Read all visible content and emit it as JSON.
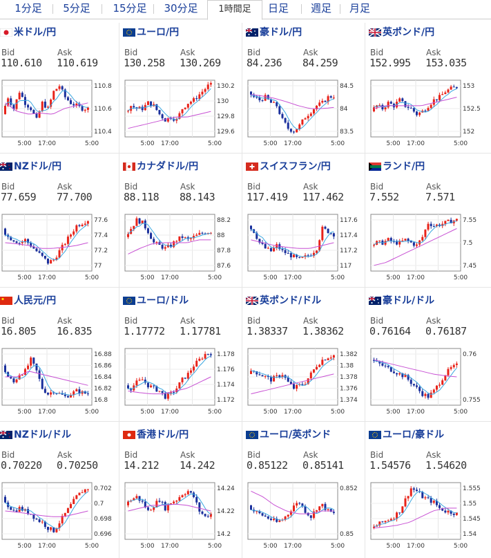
{
  "tabs": [
    {
      "label": "1分足",
      "active": false
    },
    {
      "label": "5分足",
      "active": false
    },
    {
      "label": "15分足",
      "active": false
    },
    {
      "label": "30分足",
      "active": false
    },
    {
      "label": "1時間足",
      "active": true
    },
    {
      "label": "日足",
      "active": false
    },
    {
      "label": "週足",
      "active": false
    },
    {
      "label": "月足",
      "active": false
    }
  ],
  "labels": {
    "bid": "Bid",
    "ask": "Ask"
  },
  "colors": {
    "up": "#e8231a",
    "down": "#1a2f9c",
    "ma_short": "#3aa7e0",
    "ma_long": "#c74fd3",
    "title": "#1a3f9a"
  },
  "panels": [
    {
      "name": "米ドル/円",
      "flag": "jp",
      "bid": "110.610",
      "ask": "110.619",
      "x_ticks": [
        "5:00",
        "17:00",
        "5:00"
      ],
      "y_ticks": [
        "110.8",
        "110.6",
        "110.4"
      ],
      "shape": [
        0.4,
        0.7,
        0.5,
        0.8,
        0.6,
        0.5,
        0.3,
        0.6,
        0.5,
        0.8,
        0.9,
        0.7,
        0.6,
        0.55,
        0.5,
        0.5
      ],
      "ma_long": [
        0.6,
        0.45,
        0.4,
        0.42,
        0.4,
        0.5,
        0.55,
        0.6
      ]
    },
    {
      "name": "ユーロ/円",
      "flag": "eu",
      "bid": "130.258",
      "ask": "130.269",
      "x_ticks": [
        "5:00",
        "17:00",
        "5:00"
      ],
      "y_ticks": [
        "130.2",
        "130",
        "129.8",
        "129.6"
      ],
      "shape": [
        0.45,
        0.55,
        0.5,
        0.5,
        0.6,
        0.55,
        0.4,
        0.3,
        0.35,
        0.3,
        0.5,
        0.6,
        0.65,
        0.75,
        0.85,
        0.95
      ],
      "ma_long": [
        0.15,
        0.2,
        0.25,
        0.3,
        0.35,
        0.35,
        0.4,
        0.45
      ]
    },
    {
      "name": "豪ドル/円",
      "flag": "au",
      "bid": "84.236",
      "ask": "84.259",
      "x_ticks": [
        "5:00",
        "17:00",
        "5:00"
      ],
      "y_ticks": [
        "84.5",
        "84",
        "83.5"
      ],
      "shape": [
        0.8,
        0.7,
        0.65,
        0.7,
        0.6,
        0.55,
        0.3,
        0.15,
        0.1,
        0.2,
        0.35,
        0.45,
        0.55,
        0.6,
        0.7,
        0.72
      ],
      "ma_long": [
        0.75,
        0.72,
        0.68,
        0.62,
        0.55,
        0.5,
        0.5,
        0.52
      ]
    },
    {
      "name": "英ポンド/円",
      "flag": "uk",
      "bid": "152.995",
      "ask": "153.035",
      "x_ticks": [
        "5:00",
        "17:00",
        "5:00"
      ],
      "y_ticks": [
        "153",
        "152.5",
        "152"
      ],
      "shape": [
        0.45,
        0.55,
        0.5,
        0.6,
        0.55,
        0.65,
        0.55,
        0.5,
        0.4,
        0.45,
        0.55,
        0.65,
        0.7,
        0.8,
        0.85,
        0.88
      ],
      "ma_long": [
        0.5,
        0.55,
        0.55,
        0.55,
        0.55,
        0.6,
        0.65,
        0.7
      ]
    },
    {
      "name": "NZドル/円",
      "flag": "nz",
      "bid": "77.659",
      "ask": "77.700",
      "x_ticks": [
        "5:00",
        "17:00",
        "5:00"
      ],
      "y_ticks": [
        "77.6",
        "77.4",
        "77.2",
        "77"
      ],
      "shape": [
        0.75,
        0.6,
        0.55,
        0.5,
        0.55,
        0.45,
        0.35,
        0.25,
        0.15,
        0.2,
        0.35,
        0.5,
        0.65,
        0.8,
        0.85,
        0.9
      ],
      "ma_long": [
        0.5,
        0.48,
        0.45,
        0.4,
        0.4,
        0.42,
        0.45,
        0.5
      ]
    },
    {
      "name": "カナダドル/円",
      "flag": "ca",
      "bid": "88.118",
      "ask": "88.143",
      "x_ticks": [
        "5:00",
        "17:00",
        "5:00"
      ],
      "y_ticks": [
        "88.2",
        "88",
        "87.8",
        "87.6"
      ],
      "shape": [
        0.6,
        0.75,
        0.9,
        0.85,
        0.7,
        0.5,
        0.45,
        0.4,
        0.45,
        0.55,
        0.6,
        0.55,
        0.6,
        0.65,
        0.68,
        0.7
      ],
      "ma_long": [
        0.3,
        0.4,
        0.48,
        0.5,
        0.5,
        0.5,
        0.55,
        0.55
      ]
    },
    {
      "name": "スイスフラン/円",
      "flag": "ch",
      "bid": "117.419",
      "ask": "117.462",
      "x_ticks": [
        "5:00",
        "17:00",
        "5:00"
      ],
      "y_ticks": [
        "117.6",
        "117.4",
        "117.2",
        "117"
      ],
      "shape": [
        0.8,
        0.7,
        0.5,
        0.4,
        0.35,
        0.45,
        0.35,
        0.3,
        0.25,
        0.2,
        0.25,
        0.3,
        0.4,
        0.75,
        0.7,
        0.65
      ],
      "ma_long": [
        0.55,
        0.5,
        0.45,
        0.42,
        0.4,
        0.4,
        0.45,
        0.5
      ]
    },
    {
      "name": "ランド/円",
      "flag": "za",
      "bid": "7.552",
      "ask": "7.571",
      "x_ticks": [
        "5:00",
        "17:00",
        "5:00"
      ],
      "y_ticks": [
        "7.55",
        "7.5",
        "7.45"
      ],
      "shape": [
        0.45,
        0.5,
        0.5,
        0.55,
        0.5,
        0.5,
        0.55,
        0.5,
        0.45,
        0.6,
        0.85,
        0.8,
        0.82,
        0.85,
        0.88,
        0.9
      ],
      "ma_long": [
        0.1,
        0.15,
        0.25,
        0.35,
        0.45,
        0.55,
        0.65,
        0.75
      ]
    },
    {
      "name": "人民元/円",
      "flag": "cn",
      "bid": "16.805",
      "ask": "16.835",
      "x_ticks": [
        "5:00",
        "17:00",
        "5:00"
      ],
      "y_ticks": [
        "16.88",
        "16.86",
        "16.84",
        "16.82",
        "16.8"
      ],
      "shape": [
        0.7,
        0.5,
        0.4,
        0.55,
        0.6,
        0.8,
        0.6,
        0.3,
        0.2,
        0.25,
        0.2,
        0.15,
        0.2,
        0.25,
        0.22,
        0.2
      ],
      "ma_long": [
        0.5,
        0.5,
        0.6,
        0.55,
        0.5,
        0.45,
        0.4,
        0.35
      ]
    },
    {
      "name": "ユーロ/ドル",
      "flag": "eu",
      "bid": "1.17772",
      "ask": "1.17781",
      "x_ticks": [
        "5:00",
        "17:00",
        "5:00"
      ],
      "y_ticks": [
        "1.178",
        "1.176",
        "1.174",
        "1.172"
      ],
      "shape": [
        0.35,
        0.3,
        0.4,
        0.45,
        0.35,
        0.3,
        0.25,
        0.15,
        0.2,
        0.3,
        0.45,
        0.55,
        0.7,
        0.8,
        0.9,
        0.92
      ],
      "ma_long": [
        0.25,
        0.22,
        0.2,
        0.2,
        0.25,
        0.3,
        0.4,
        0.5
      ]
    },
    {
      "name": "英ポンド/ドル",
      "flag": "uk",
      "bid": "1.38337",
      "ask": "1.38362",
      "x_ticks": [
        "5:00",
        "17:00",
        "5:00"
      ],
      "y_ticks": [
        "1.382",
        "1.38",
        "1.378",
        "1.376",
        "1.374"
      ],
      "shape": [
        0.55,
        0.6,
        0.55,
        0.5,
        0.45,
        0.5,
        0.55,
        0.4,
        0.3,
        0.35,
        0.4,
        0.55,
        0.7,
        0.8,
        0.85,
        0.88
      ],
      "ma_long": [
        0.2,
        0.25,
        0.3,
        0.35,
        0.4,
        0.45,
        0.5,
        0.55
      ]
    },
    {
      "name": "豪ドル/ドル",
      "flag": "au",
      "bid": "0.76164",
      "ask": "0.76187",
      "x_ticks": [
        "5:00",
        "17:00",
        "5:00"
      ],
      "y_ticks": [
        "0.76",
        "0.755"
      ],
      "shape": [
        0.8,
        0.75,
        0.7,
        0.65,
        0.6,
        0.55,
        0.5,
        0.4,
        0.3,
        0.2,
        0.15,
        0.25,
        0.4,
        0.55,
        0.65,
        0.7
      ],
      "ma_long": [
        0.8,
        0.75,
        0.7,
        0.65,
        0.6,
        0.55,
        0.52,
        0.5
      ]
    },
    {
      "name": "NZドル/ドル",
      "flag": "nz",
      "bid": "0.70220",
      "ask": "0.70250",
      "x_ticks": [
        "5:00",
        "17:00",
        "5:00"
      ],
      "y_ticks": [
        "0.702",
        "0.7",
        "0.698",
        "0.696"
      ],
      "shape": [
        0.75,
        0.6,
        0.5,
        0.55,
        0.5,
        0.45,
        0.35,
        0.3,
        0.2,
        0.15,
        0.3,
        0.45,
        0.6,
        0.75,
        0.85,
        0.9
      ],
      "ma_long": [
        0.5,
        0.48,
        0.45,
        0.42,
        0.4,
        0.4,
        0.45,
        0.5
      ]
    },
    {
      "name": "香港ドル/円",
      "flag": "hk",
      "bid": "14.212",
      "ask": "14.242",
      "x_ticks": [
        "5:00",
        "17:00",
        "5:00"
      ],
      "y_ticks": [
        "14.24",
        "14.22",
        "14.2"
      ],
      "shape": [
        0.6,
        0.7,
        0.75,
        0.65,
        0.5,
        0.6,
        0.7,
        0.55,
        0.65,
        0.7,
        0.8,
        0.85,
        0.75,
        0.5,
        0.4,
        0.45
      ],
      "ma_long": [
        0.5,
        0.55,
        0.6,
        0.6,
        0.62,
        0.6,
        0.55,
        0.5
      ]
    },
    {
      "name": "ユーロ/英ポンド",
      "flag": "eu",
      "bid": "0.85122",
      "ask": "0.85141",
      "x_ticks": [
        "5:00",
        "17:00",
        "5:00"
      ],
      "y_ticks": [
        "0.852",
        "0.85"
      ],
      "shape": [
        0.6,
        0.5,
        0.45,
        0.4,
        0.35,
        0.3,
        0.35,
        0.45,
        0.6,
        0.65,
        0.5,
        0.4,
        0.55,
        0.6,
        0.5,
        0.45
      ],
      "ma_long": [
        0.85,
        0.75,
        0.6,
        0.5,
        0.45,
        0.45,
        0.5,
        0.5
      ]
    },
    {
      "name": "ユーロ/豪ドル",
      "flag": "eu",
      "bid": "1.54576",
      "ask": "1.54620",
      "x_ticks": [
        "5:00",
        "17:00",
        "5:00"
      ],
      "y_ticks": [
        "1.555",
        "1.55",
        "1.545",
        "1.54"
      ],
      "shape": [
        0.2,
        0.25,
        0.3,
        0.35,
        0.4,
        0.5,
        0.7,
        0.9,
        0.85,
        0.75,
        0.7,
        0.65,
        0.55,
        0.5,
        0.48,
        0.45
      ],
      "ma_long": [
        0.2,
        0.22,
        0.25,
        0.3,
        0.4,
        0.5,
        0.55,
        0.55
      ]
    }
  ]
}
